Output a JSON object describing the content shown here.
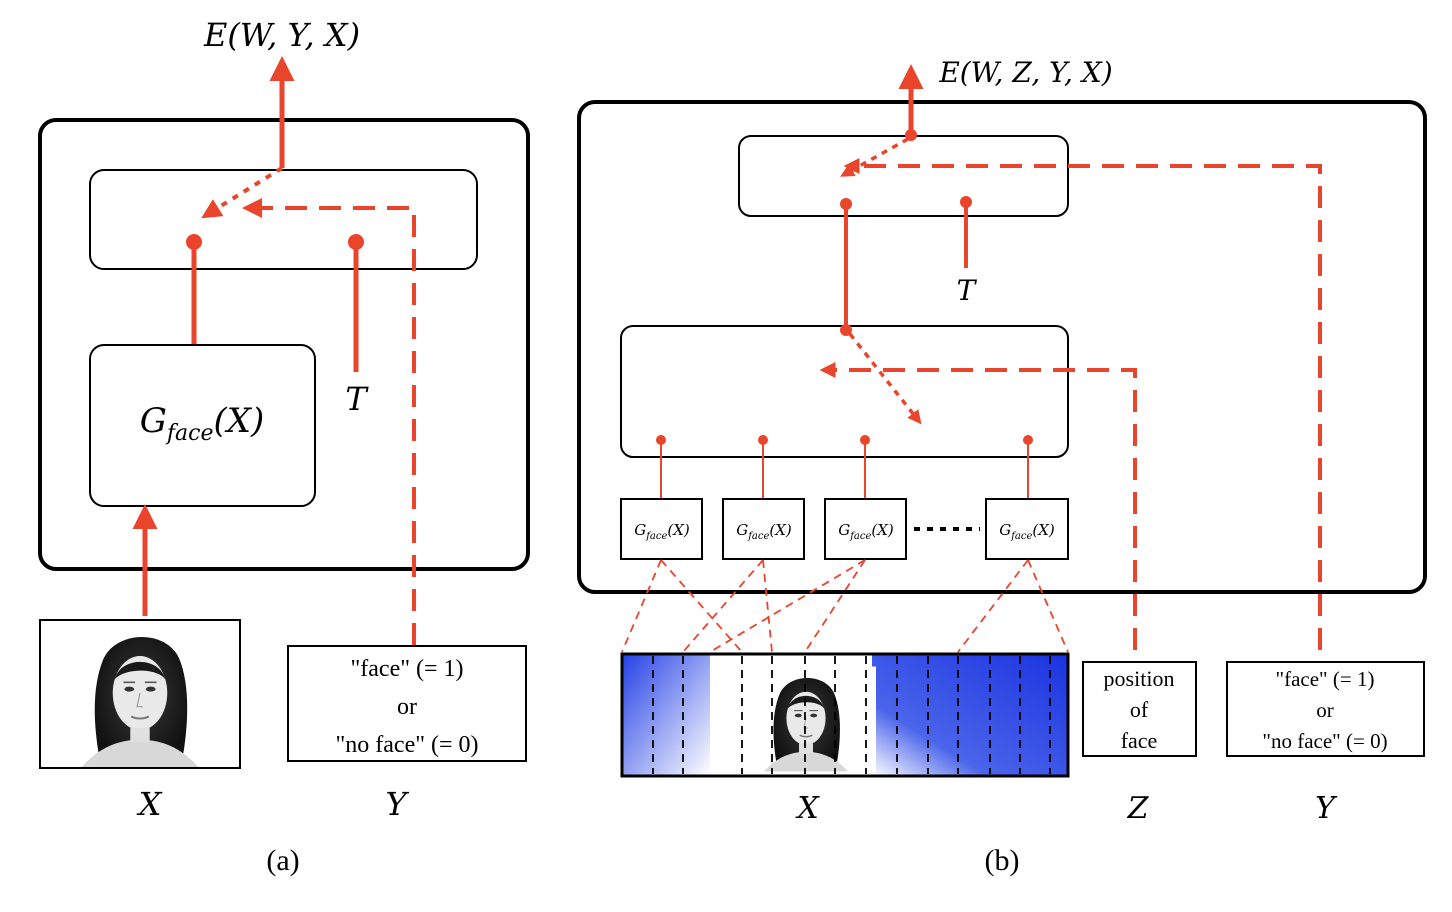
{
  "panel_a": {
    "caption": "(a)",
    "energy_label": "E(W, Y, X)",
    "module_label": {
      "G": "G",
      "sub": "face",
      "arg": "(X)"
    },
    "t_label": "T",
    "label_box_lines": [
      "\"face\" (= 1)",
      "or",
      "\"no face\" (= 0)"
    ],
    "x_label": "X",
    "y_label": "Y"
  },
  "panel_b": {
    "caption": "(b)",
    "energy_label": "E(W, Z, Y, X)",
    "t_label": "T",
    "module_label": {
      "G": "G",
      "sub": "face",
      "arg": "(X)"
    },
    "module_count": 4,
    "z_box_lines": [
      "position",
      "of",
      "face"
    ],
    "y_box_lines": [
      "\"face\" (= 1)",
      "or",
      "\"no face\" (= 0)"
    ],
    "x_label": "X",
    "z_label": "Z",
    "y_label": "Y"
  },
  "colors": {
    "arrow": "#e8452c",
    "box_stroke": "#000000",
    "strip_blue": "#1f3fe0"
  }
}
